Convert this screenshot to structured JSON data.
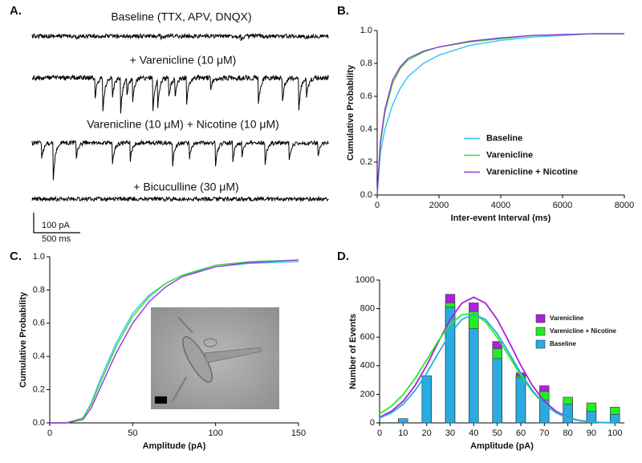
{
  "chart_data": [
    {
      "type": "traces",
      "panel_label": "A.",
      "trace_labels": [
        "Baseline (TTX, APV, DNQX)",
        "+ Varenicline (10 μM)",
        "Varenicline (10 μM) + Nicotine (10 μM)",
        "+ Bicuculline (30 μM)"
      ],
      "scale_bar": {
        "y_label": "100 pA",
        "x_label": "500 ms"
      }
    },
    {
      "type": "line",
      "panel_label": "B.",
      "xlabel": "Inter-event Interval (ms)",
      "ylabel": "Cumulative Probability",
      "x": [
        0,
        100,
        250,
        500,
        750,
        1000,
        1500,
        2000,
        3000,
        4000,
        5000,
        6000,
        7000,
        8000
      ],
      "series": [
        {
          "name": "Baseline",
          "color": "#33c3ee",
          "values": [
            0,
            0.25,
            0.4,
            0.55,
            0.65,
            0.72,
            0.8,
            0.85,
            0.91,
            0.94,
            0.96,
            0.97,
            0.98,
            0.98
          ]
        },
        {
          "name": "Varenicline",
          "color": "#33dd33",
          "values": [
            0,
            0.3,
            0.5,
            0.68,
            0.77,
            0.82,
            0.87,
            0.9,
            0.93,
            0.95,
            0.97,
            0.975,
            0.98,
            0.98
          ]
        },
        {
          "name": "Varenicline + Nicotine",
          "color": "#9933dd",
          "values": [
            0,
            0.32,
            0.52,
            0.7,
            0.78,
            0.83,
            0.875,
            0.9,
            0.935,
            0.955,
            0.97,
            0.975,
            0.98,
            0.98
          ]
        }
      ],
      "xlim": [
        0,
        8000
      ],
      "xticks": [
        0,
        2000,
        4000,
        6000,
        8000
      ],
      "ylim": [
        0,
        1
      ],
      "yticks": [
        {
          "value": 0,
          "label": "0.0"
        },
        0.2,
        0.4,
        0.6,
        0.8,
        {
          "value": 1,
          "label": "1.0"
        }
      ],
      "legend": "center-right"
    },
    {
      "type": "line",
      "panel_label": "C.",
      "xlabel": "Amplitude (pA)",
      "ylabel": "Cumulative Probability",
      "x": [
        0,
        10,
        20,
        25,
        30,
        40,
        50,
        60,
        70,
        80,
        100,
        120,
        150
      ],
      "series": [
        {
          "color": "#33c3ee",
          "values": [
            0,
            0,
            0.03,
            0.12,
            0.25,
            0.48,
            0.66,
            0.77,
            0.84,
            0.89,
            0.94,
            0.96,
            0.97
          ]
        },
        {
          "color": "#33dd33",
          "values": [
            0,
            0,
            0.03,
            0.11,
            0.23,
            0.46,
            0.64,
            0.76,
            0.84,
            0.89,
            0.95,
            0.97,
            0.98
          ]
        },
        {
          "color": "#9933dd",
          "values": [
            0,
            0,
            0.02,
            0.09,
            0.2,
            0.42,
            0.6,
            0.73,
            0.82,
            0.88,
            0.94,
            0.965,
            0.98
          ]
        }
      ],
      "xlim": [
        0,
        150
      ],
      "xticks": [
        0,
        50,
        100,
        150
      ],
      "ylim": [
        0,
        1
      ],
      "yticks": [
        {
          "value": 0,
          "label": "0.0"
        },
        0.2,
        0.4,
        0.6,
        0.8,
        {
          "value": 1,
          "label": "1.0"
        }
      ]
    },
    {
      "type": "bar",
      "panel_label": "D.",
      "xlabel": "Amplitude (pA)",
      "ylabel": "Number of Events",
      "bar_mode": "overlay",
      "x": [
        10,
        20,
        30,
        40,
        50,
        60,
        70,
        80,
        90,
        100
      ],
      "fit_x": [
        0,
        5,
        10,
        15,
        20,
        25,
        30,
        35,
        40,
        45,
        50,
        55,
        60,
        65,
        70,
        75,
        80,
        85,
        90,
        95,
        100
      ],
      "series": [
        {
          "name": "Varenicline",
          "color": "#aa22dd",
          "values": [
            25,
            330,
            900,
            840,
            570,
            350,
            260,
            170,
            100,
            80
          ],
          "fit": [
            39,
            81,
            151,
            260,
            403,
            567,
            724,
            838,
            880,
            838,
            724,
            567,
            403,
            260,
            151,
            81,
            39,
            17,
            7,
            2,
            0
          ]
        },
        {
          "name": "Varenicline + Nicotine",
          "color": "#22ee22",
          "values": [
            20,
            320,
            840,
            780,
            520,
            330,
            220,
            180,
            140,
            110
          ],
          "fit": [
            63,
            117,
            198,
            309,
            440,
            575,
            689,
            758,
            765,
            708,
            600,
            467,
            333,
            218,
            131,
            72,
            36,
            17,
            7,
            3,
            1
          ]
        },
        {
          "name": "Baseline",
          "color": "#29abe2",
          "values": [
            30,
            330,
            810,
            660,
            450,
            320,
            160,
            130,
            80,
            60
          ],
          "fit": [
            34,
            70,
            130,
            225,
            348,
            490,
            625,
            724,
            760,
            724,
            625,
            490,
            348,
            225,
            130,
            70,
            34,
            15,
            6,
            2,
            0
          ]
        }
      ],
      "xlim": [
        0,
        104
      ],
      "xticks": [
        0,
        10,
        20,
        30,
        40,
        50,
        60,
        70,
        80,
        90,
        100
      ],
      "ylim": [
        0,
        1000
      ],
      "yticks": [
        0,
        200,
        400,
        600,
        800,
        1000
      ],
      "legend": "upper-right"
    }
  ]
}
